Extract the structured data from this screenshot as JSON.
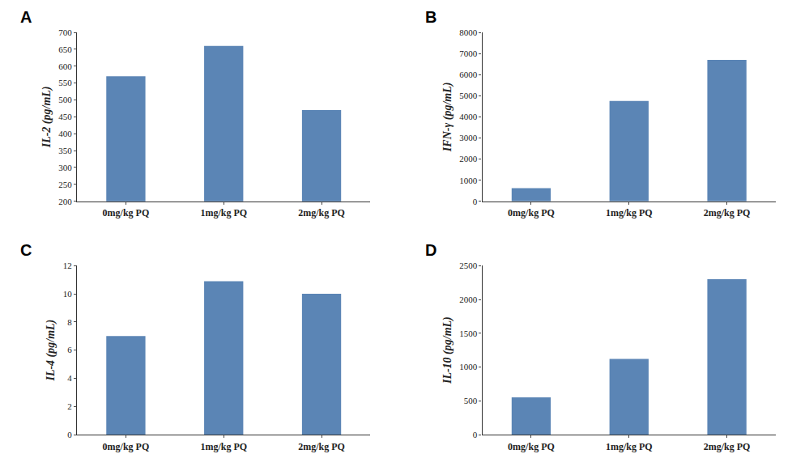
{
  "chart_data": [
    {
      "type": "bar",
      "title": "A",
      "ylabel": "IL-2 (pg/mL)",
      "categories": [
        "0mg/kg PQ",
        "1mg/kg PQ",
        "2mg/kg PQ"
      ],
      "values": [
        570,
        660,
        470
      ],
      "color": "#5b85b5",
      "ylim": [
        200,
        700
      ],
      "yticks": [
        200,
        250,
        300,
        350,
        400,
        450,
        500,
        550,
        600,
        650,
        700
      ],
      "grid": false
    },
    {
      "type": "bar",
      "title": "B",
      "ylabel": "IFN-γ (pg/mL)",
      "categories": [
        "0mg/kg PQ",
        "1mg/kg PQ",
        "2mg/kg PQ"
      ],
      "values": [
        620,
        4750,
        6700
      ],
      "color": "#5b85b5",
      "ylim": [
        0,
        8000
      ],
      "yticks": [
        0,
        1000,
        2000,
        3000,
        4000,
        5000,
        6000,
        7000,
        8000
      ],
      "grid": false
    },
    {
      "type": "bar",
      "title": "C",
      "ylabel": "IL-4 (pg/mL)",
      "categories": [
        "0mg/kg PQ",
        "1mg/kg PQ",
        "2mg/kg PQ"
      ],
      "values": [
        7.0,
        10.9,
        10.0
      ],
      "color": "#5b85b5",
      "ylim": [
        0,
        12
      ],
      "yticks": [
        0,
        2,
        4,
        6,
        8,
        10,
        12
      ],
      "grid": false
    },
    {
      "type": "bar",
      "title": "D",
      "ylabel": "IL-10 (pg/mL)",
      "categories": [
        "0mg/kg PQ",
        "1mg/kg PQ",
        "2mg/kg PQ"
      ],
      "values": [
        550,
        1120,
        2300
      ],
      "color": "#5b85b5",
      "ylim": [
        0,
        2500
      ],
      "yticks": [
        0,
        500,
        1000,
        1500,
        2000,
        2500
      ],
      "grid": false
    }
  ]
}
